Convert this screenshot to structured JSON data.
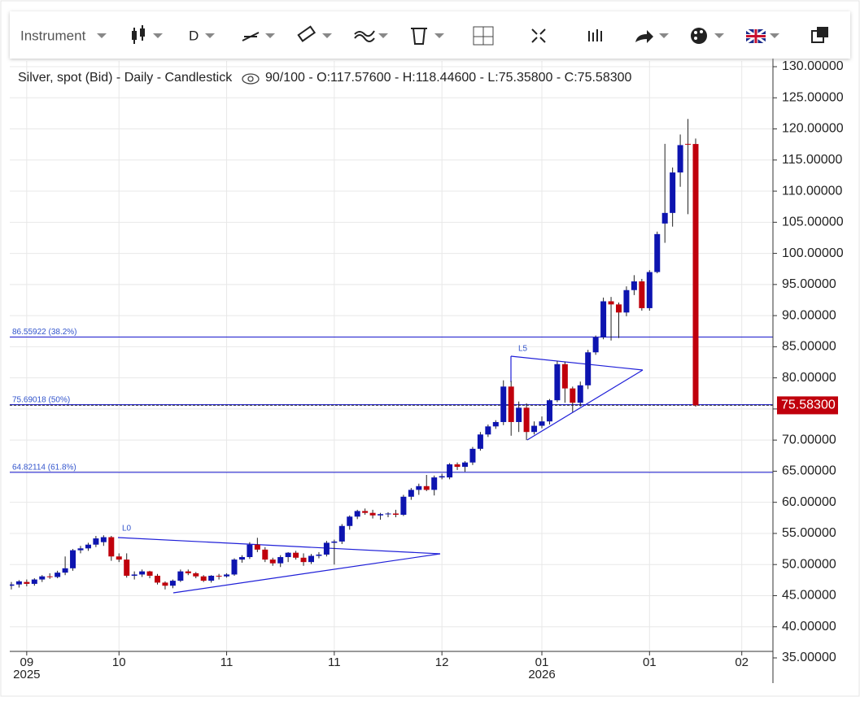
{
  "toolbar": {
    "instrument": "Instrument",
    "interval": "D"
  },
  "chart_data": {
    "type": "candlestick",
    "title": "Silver, spot (Bid) - Daily - Candlestick",
    "subtitle": "90/100 - O:117.57600 - H:118.44600 - L:75.35800 - C:75.58300",
    "categories": [
      null,
      null,
      null,
      "09",
      null,
      null,
      null,
      null,
      null,
      null,
      null,
      null,
      null,
      null,
      null,
      "10",
      null,
      null,
      null,
      null,
      null,
      null,
      null,
      null,
      null,
      null,
      null,
      null,
      null,
      "11",
      null,
      null,
      null,
      null,
      null,
      null,
      null,
      null,
      null,
      null,
      null,
      null,
      null,
      "11",
      null,
      null,
      null,
      null,
      null,
      null,
      null,
      null,
      null,
      null,
      null,
      null,
      null,
      "12",
      null,
      null,
      null,
      null,
      null,
      null,
      null,
      null,
      null,
      null,
      null,
      null,
      "01",
      null,
      null,
      null,
      null,
      null,
      null,
      null,
      null,
      null,
      null,
      null,
      null,
      null,
      "01",
      null,
      null,
      null,
      null,
      null,
      null,
      null,
      null,
      null,
      null,
      null,
      "02",
      null,
      null
    ],
    "x_year_labels": [
      null,
      null,
      null,
      "2025",
      null,
      null,
      null,
      null,
      null,
      null,
      null,
      null,
      null,
      null,
      null,
      null,
      null,
      null,
      null,
      null,
      null,
      null,
      null,
      null,
      null,
      null,
      null,
      null,
      null,
      null,
      null,
      null,
      null,
      null,
      null,
      null,
      null,
      null,
      null,
      null,
      null,
      null,
      null,
      null,
      null,
      null,
      null,
      null,
      null,
      null,
      null,
      null,
      null,
      null,
      null,
      null,
      null,
      null,
      null,
      null,
      null,
      null,
      null,
      null,
      null,
      null,
      null,
      null,
      null,
      null,
      "2026",
      null,
      null,
      null,
      null,
      null,
      null,
      null,
      null,
      null,
      null,
      null,
      null,
      null,
      null,
      null,
      null,
      null,
      null,
      null,
      null,
      null,
      null,
      null,
      null,
      null,
      null,
      null,
      null
    ],
    "open": [
      46.3,
      46.6,
      46.8,
      47.2,
      46.9,
      47.6,
      48.1,
      48.0,
      48.7,
      49.4,
      52.3,
      52.6,
      53.2,
      53.6,
      54.4,
      51.3,
      50.8,
      48.2,
      48.4,
      48.9,
      48.2,
      47.1,
      46.6,
      47.4,
      48.9,
      48.6,
      48.1,
      47.4,
      48.2,
      48.1,
      48.4,
      50.8,
      51.2,
      53.2,
      52.4,
      50.8,
      50.2,
      51.2,
      51.9,
      51.1,
      50.4,
      51.4,
      51.6,
      53.5,
      53.7,
      56.2,
      57.7,
      58.6,
      58.3,
      57.9,
      58.1,
      58.2,
      58.0,
      60.9,
      62.0,
      62.6,
      62.0,
      64.0,
      64.0,
      66.1,
      65.7,
      66.4,
      68.6,
      70.9,
      72.2,
      72.9,
      78.6,
      72.9,
      75.2,
      71.3,
      72.3,
      73.0,
      76.4,
      82.2,
      78.3,
      76.0,
      78.8,
      84.1,
      86.5,
      92.3,
      91.8,
      90.5,
      94.1,
      95.5,
      91.2,
      97.0,
      104.8,
      106.5,
      113.0,
      117.6,
      117.576,
      null,
      null,
      null,
      null,
      null,
      null,
      null,
      null
    ],
    "high": [
      46.8,
      47.2,
      47.5,
      47.6,
      47.8,
      48.3,
      48.6,
      49.0,
      51.3,
      52.5,
      53.0,
      53.5,
      54.6,
      54.7,
      54.6,
      51.8,
      51.8,
      48.9,
      49.2,
      49.0,
      48.5,
      47.3,
      47.6,
      49.2,
      49.2,
      48.8,
      48.3,
      48.3,
      48.5,
      48.6,
      51.0,
      51.5,
      53.6,
      54.3,
      52.8,
      51.1,
      51.5,
      52.0,
      52.2,
      51.8,
      51.7,
      52.0,
      53.8,
      54.0,
      56.5,
      57.9,
      58.8,
      59.0,
      58.8,
      58.3,
      58.4,
      58.8,
      61.2,
      62.3,
      63.0,
      64.4,
      64.3,
      64.6,
      66.3,
      66.4,
      66.6,
      68.9,
      71.3,
      72.5,
      73.2,
      79.6,
      79.5,
      76.2,
      75.9,
      73.0,
      73.8,
      76.6,
      82.7,
      82.6,
      78.6,
      79.4,
      84.5,
      86.8,
      92.9,
      93.0,
      92.1,
      94.7,
      96.5,
      95.9,
      97.3,
      103.5,
      117.6,
      113.8,
      119.1,
      121.6,
      118.446,
      null,
      null,
      null,
      null,
      null,
      null,
      null,
      null
    ],
    "low": [
      46.0,
      46.0,
      46.3,
      46.5,
      46.6,
      47.2,
      47.7,
      47.8,
      48.3,
      49.0,
      51.8,
      52.2,
      52.8,
      53.0,
      50.6,
      50.4,
      47.9,
      47.6,
      48.0,
      47.8,
      46.8,
      46.0,
      46.2,
      47.2,
      48.3,
      47.8,
      47.2,
      47.1,
      47.6,
      47.9,
      48.2,
      50.3,
      50.9,
      52.0,
      50.4,
      49.8,
      49.6,
      50.4,
      50.8,
      49.8,
      50.1,
      51.0,
      51.3,
      50.0,
      53.3,
      55.6,
      57.3,
      58.0,
      57.4,
      57.2,
      57.6,
      57.6,
      57.8,
      60.4,
      61.2,
      61.8,
      61.1,
      63.7,
      63.7,
      65.2,
      64.9,
      66.0,
      68.3,
      70.5,
      71.8,
      72.4,
      70.7,
      71.3,
      70.0,
      70.9,
      71.9,
      72.5,
      76.1,
      76.0,
      74.5,
      75.4,
      78.2,
      83.7,
      86.2,
      86.0,
      86.4,
      89.9,
      93.3,
      90.8,
      90.8,
      96.8,
      101.7,
      104.3,
      110.7,
      106.3,
      75.358,
      null,
      null,
      null,
      null,
      null,
      null,
      null,
      null
    ],
    "close": [
      46.6,
      46.8,
      47.3,
      46.9,
      47.6,
      48.1,
      48.0,
      48.7,
      49.4,
      52.3,
      52.6,
      53.2,
      54.2,
      54.4,
      51.3,
      50.8,
      48.2,
      48.4,
      48.9,
      48.2,
      47.1,
      46.6,
      47.4,
      48.9,
      48.6,
      48.1,
      47.4,
      48.2,
      48.1,
      48.4,
      50.8,
      51.2,
      53.2,
      52.4,
      50.8,
      50.2,
      51.2,
      51.9,
      51.1,
      50.4,
      51.4,
      51.6,
      53.5,
      53.7,
      56.2,
      57.7,
      58.6,
      58.3,
      57.9,
      58.1,
      58.2,
      58.0,
      60.9,
      62.0,
      62.6,
      62.0,
      64.0,
      64.2,
      66.1,
      65.7,
      66.4,
      68.6,
      70.9,
      72.2,
      72.9,
      78.6,
      72.9,
      75.2,
      71.3,
      72.3,
      73.0,
      76.4,
      82.2,
      78.3,
      76.0,
      78.8,
      84.1,
      86.5,
      92.3,
      91.8,
      90.5,
      94.1,
      95.5,
      91.2,
      97.0,
      103.1,
      106.5,
      113.0,
      117.4,
      117.5,
      75.583,
      null,
      null,
      null,
      null,
      null,
      null,
      null,
      null
    ],
    "up_color": "#0d14b0",
    "down_color": "#c0000c",
    "ylim": [
      35,
      130
    ],
    "yticks": [
      {
        "value": 130,
        "label": "130.00000"
      },
      {
        "value": 125,
        "label": "125.00000"
      },
      {
        "value": 120,
        "label": "120.00000"
      },
      {
        "value": 115,
        "label": "115.00000"
      },
      {
        "value": 110,
        "label": "110.00000"
      },
      {
        "value": 105,
        "label": "105.00000"
      },
      {
        "value": 100,
        "label": "100.00000"
      },
      {
        "value": 95,
        "label": "95.00000"
      },
      {
        "value": 90,
        "label": "90.00000"
      },
      {
        "value": 85,
        "label": "85.00000"
      },
      {
        "value": 80,
        "label": "80.00000"
      },
      {
        "value": 75,
        "label": "75.00000"
      },
      {
        "value": 70,
        "label": "70.00000"
      },
      {
        "value": 65,
        "label": "65.00000"
      },
      {
        "value": 60,
        "label": "60.00000"
      },
      {
        "value": 55,
        "label": "55.00000"
      },
      {
        "value": 50,
        "label": "50.00000"
      },
      {
        "value": 45,
        "label": "45.00000"
      },
      {
        "value": 40,
        "label": "40.00000"
      },
      {
        "value": 35,
        "label": "35.00000"
      }
    ],
    "grid": true,
    "levels": [
      {
        "value": 86.55922,
        "label": "86.55922 (38.2%)"
      },
      {
        "value": 75.69018,
        "label": "75.69018 (50%)"
      },
      {
        "value": 64.82114,
        "label": "64.82114 (61.8%)"
      }
    ],
    "level_color": "#2a2ad0",
    "last_price": {
      "value": 75.583,
      "label": "75.58300"
    },
    "drawing_labels": [
      "L0",
      "L5"
    ]
  }
}
